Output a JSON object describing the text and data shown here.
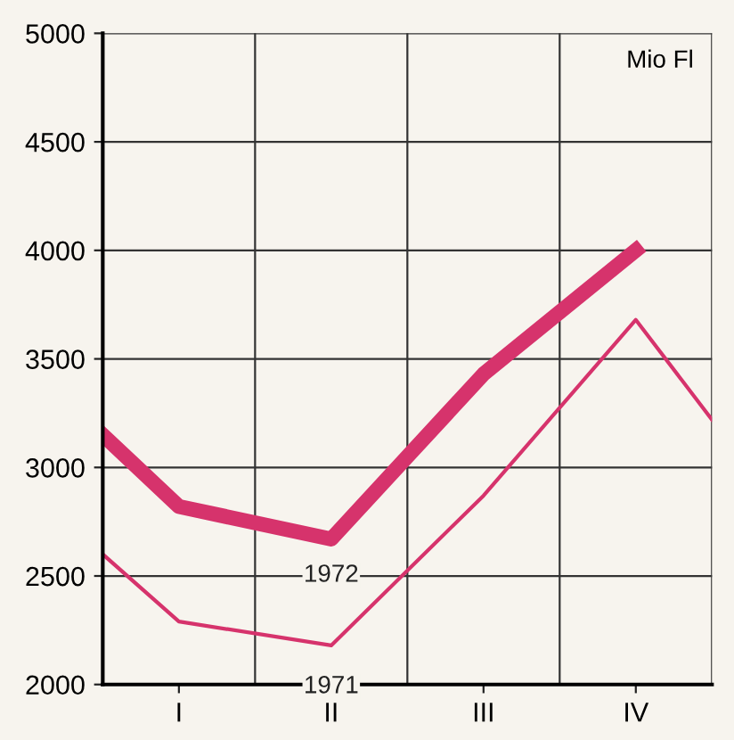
{
  "chart_data": {
    "type": "line",
    "categories": [
      null,
      "I",
      null,
      "II",
      null,
      "III",
      null,
      "IV",
      null
    ],
    "series": [
      {
        "name": "1972",
        "color": "#d6336c",
        "values": [
          3150,
          2820,
          null,
          2670,
          null,
          3430,
          null,
          4000,
          null
        ]
      },
      {
        "name": "1971",
        "color": "#d6336c",
        "values": [
          2600,
          2290,
          null,
          2180,
          null,
          2870,
          null,
          3680,
          3220
        ]
      }
    ],
    "ylim": [
      2000,
      5000
    ],
    "yticks": [
      2000,
      2500,
      3000,
      3500,
      4000,
      4500,
      5000
    ],
    "annotations": [
      "Mio Fl"
    ],
    "grid": true,
    "marker": "none",
    "line_style": "solid",
    "legend": false
  }
}
